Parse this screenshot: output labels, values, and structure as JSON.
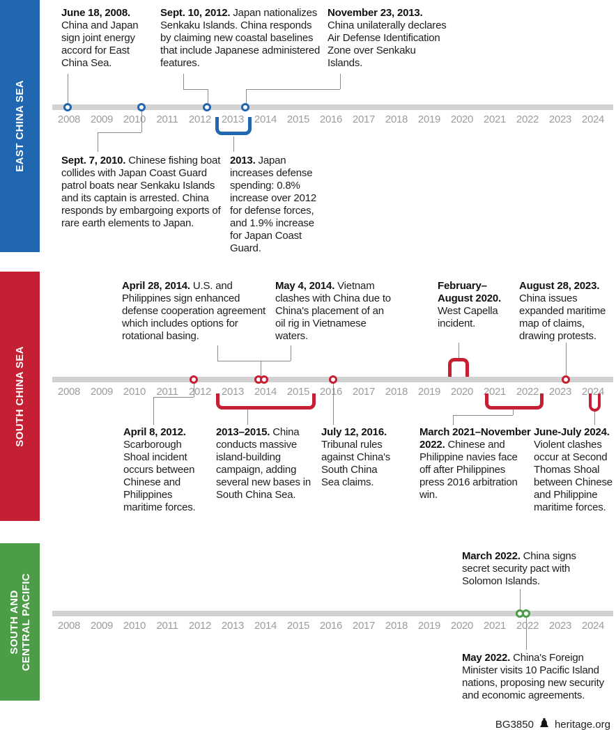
{
  "timeline_years": [
    "2008",
    "2009",
    "2010",
    "2011",
    "2012",
    "2013",
    "2014",
    "2015",
    "2016",
    "2017",
    "2018",
    "2019",
    "2020",
    "2021",
    "2022",
    "2023",
    "2024"
  ],
  "colors": {
    "east": "#2166b0",
    "south": "#c41f33",
    "pacific": "#4d9c47",
    "track": "#d2d2d2"
  },
  "sections": [
    {
      "label": "EAST CHINA SEA",
      "events": [
        {
          "date": "June 18, 2008.",
          "text": "China and Japan sign joint energy accord for East China Sea."
        },
        {
          "date": "Sept. 10, 2012.",
          "text": "Japan nationalizes Senkaku Islands. China responds by claiming new coastal baselines that include Japanese administered features."
        },
        {
          "date": "November 23, 2013.",
          "text": "China unilaterally declares Air Defense Identification Zone over Senkaku Islands."
        },
        {
          "date": "Sept. 7, 2010.",
          "text": "Chinese fishing boat collides with Japan Coast Guard patrol boats near Senkaku Islands and its captain is arrested. China responds by embargoing exports of rare earth elements to Japan."
        },
        {
          "date": "2013.",
          "text": "Japan increases defense spending: 0.8% increase over 2012 for defense forces, and 1.9% increase for Japan Coast Guard."
        }
      ]
    },
    {
      "label": "SOUTH CHINA SEA",
      "events": [
        {
          "date": "April 28, 2014.",
          "text": "U.S. and Philippines sign enhanced defense cooperation agreement which includes options for rotational basing."
        },
        {
          "date": "May 4, 2014.",
          "text": "Vietnam clashes with China due to China's placement of an oil rig in Vietnamese waters."
        },
        {
          "date": "February–August 2020.",
          "text": "West Capella incident."
        },
        {
          "date": "August 28, 2023.",
          "text": "China issues expanded maritime map of claims, drawing protests."
        },
        {
          "date": "April 8, 2012.",
          "text": "Scarborough Shoal incident occurs between Chinese and Philippines maritime forces."
        },
        {
          "date": "2013–2015.",
          "text": "China conducts massive island-building campaign, adding several new bases in South China Sea."
        },
        {
          "date": "July 12, 2016.",
          "text": "Tribunal rules against China's South China Sea claims."
        },
        {
          "date": "March 2021–November 2022.",
          "text": "Chinese and Philippine navies face off after Philippines press 2016 arbitration win."
        },
        {
          "date": "June-July 2024.",
          "text": "Violent clashes occur at Second Thomas Shoal between Chinese and Philippine maritime forces."
        }
      ]
    },
    {
      "label": "SOUTH AND\nCENTRAL PACIFIC",
      "events": [
        {
          "date": "March 2022.",
          "text": "China signs secret security pact with Solomon Islands."
        },
        {
          "date": "May 2022.",
          "text": "China's Foreign Minister visits 10 Pacific Island nations, proposing new security and economic agreements."
        }
      ]
    }
  ],
  "footer": {
    "report_id": "BG3850",
    "site": "heritage.org"
  }
}
